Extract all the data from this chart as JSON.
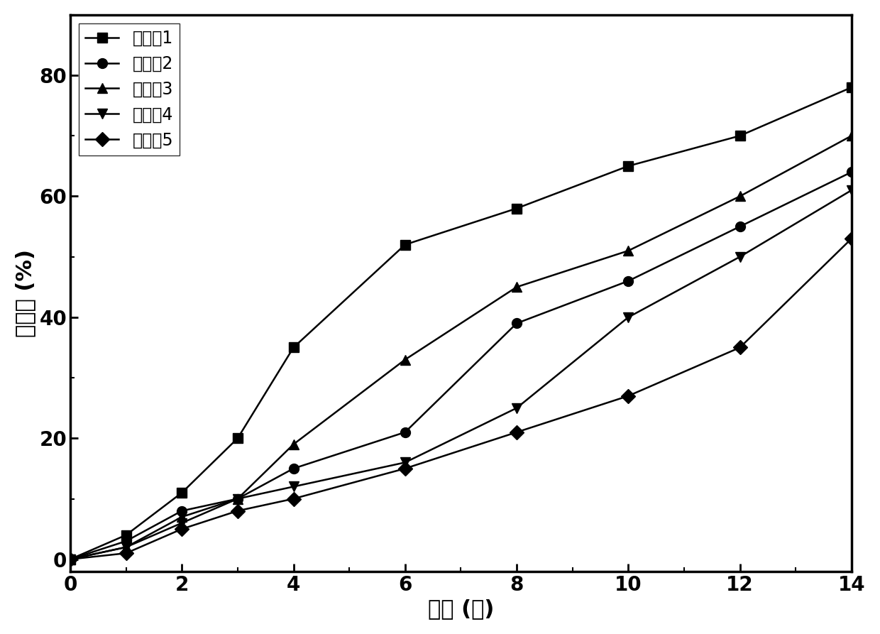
{
  "x_values": [
    0,
    1,
    2,
    3,
    4,
    6,
    8,
    10,
    12,
    14
  ],
  "series": [
    {
      "label": "实施例1",
      "marker": "s",
      "values": [
        0,
        4,
        11,
        20,
        35,
        52,
        58,
        65,
        70,
        78
      ]
    },
    {
      "label": "实施例2",
      "marker": "o",
      "values": [
        0,
        3,
        8,
        10,
        15,
        21,
        39,
        46,
        55,
        64
      ]
    },
    {
      "label": "实施例3",
      "marker": "^",
      "values": [
        0,
        2,
        7,
        10,
        19,
        33,
        45,
        51,
        60,
        70
      ]
    },
    {
      "label": "实施例4",
      "marker": "v",
      "values": [
        0,
        2,
        6,
        10,
        12,
        16,
        25,
        40,
        50,
        61
      ]
    },
    {
      "label": "实施例5",
      "marker": "D",
      "values": [
        0,
        1,
        5,
        8,
        10,
        15,
        21,
        27,
        35,
        53
      ]
    }
  ],
  "xlabel": "时间 (周)",
  "ylabel": "失重率 (%)",
  "xlim": [
    0,
    14
  ],
  "ylim": [
    -2,
    90
  ],
  "xticks": [
    0,
    2,
    4,
    6,
    8,
    10,
    12,
    14
  ],
  "yticks": [
    0,
    20,
    40,
    60,
    80
  ],
  "line_color": "#000000",
  "marker_size": 10,
  "line_width": 1.8,
  "font_size_label": 22,
  "font_size_tick": 20,
  "font_size_legend": 17,
  "legend_loc": "upper left"
}
